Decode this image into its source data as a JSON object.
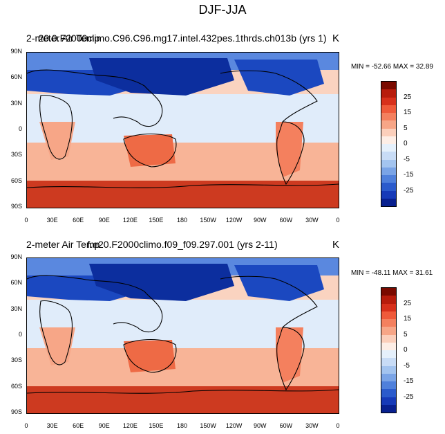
{
  "figure": {
    "title": "DJF-JJA"
  },
  "panels": [
    {
      "left_title": "2-meter Air Temp",
      "center_title": "20.0.F2000climo.C96.C96.mg17.intel.432pes.1thrds.ch013b (yrs 1)",
      "units": "K",
      "minmax": "MIN = -52.66  MAX =  32.89"
    },
    {
      "left_title": "2-meter Air Temp",
      "center_title": "f.e20.F2000climo.f09_f09.297.001 (yrs 2-11)",
      "units": "K",
      "minmax": "MIN = -48.11  MAX =  31.61"
    }
  ],
  "axes": {
    "lon_ticks": [
      "0",
      "30E",
      "60E",
      "90E",
      "120E",
      "150E",
      "180",
      "150W",
      "120W",
      "90W",
      "60W",
      "30W",
      "0"
    ],
    "lat_ticks": [
      "90N",
      "60N",
      "30N",
      "0",
      "30S",
      "60S",
      "90S"
    ]
  },
  "colorbar": {
    "labels": [
      "25",
      "15",
      "5",
      "0",
      "-5",
      "-15",
      "-25"
    ],
    "colors": [
      "#7a0a00",
      "#b71c0c",
      "#d7301b",
      "#ef5a3a",
      "#f4805e",
      "#f7a687",
      "#fbcfbb",
      "#fdeee6",
      "#e5f0fb",
      "#c8dcf6",
      "#a3c4ef",
      "#7aa4e6",
      "#4f80db",
      "#2b5bcc",
      "#163ab8",
      "#08208f"
    ]
  },
  "map_colors": {
    "ocean_warm": "#fad3c0",
    "tropics": "#e0ecfa",
    "south_ocean": "#f8b497",
    "antarctic": "#cd3a20",
    "arctic": "#5a88df",
    "siberia": "#0c2e9e",
    "continent_cold": "#1b48c0",
    "australia": "#ee6a45",
    "coast": "#000000"
  }
}
